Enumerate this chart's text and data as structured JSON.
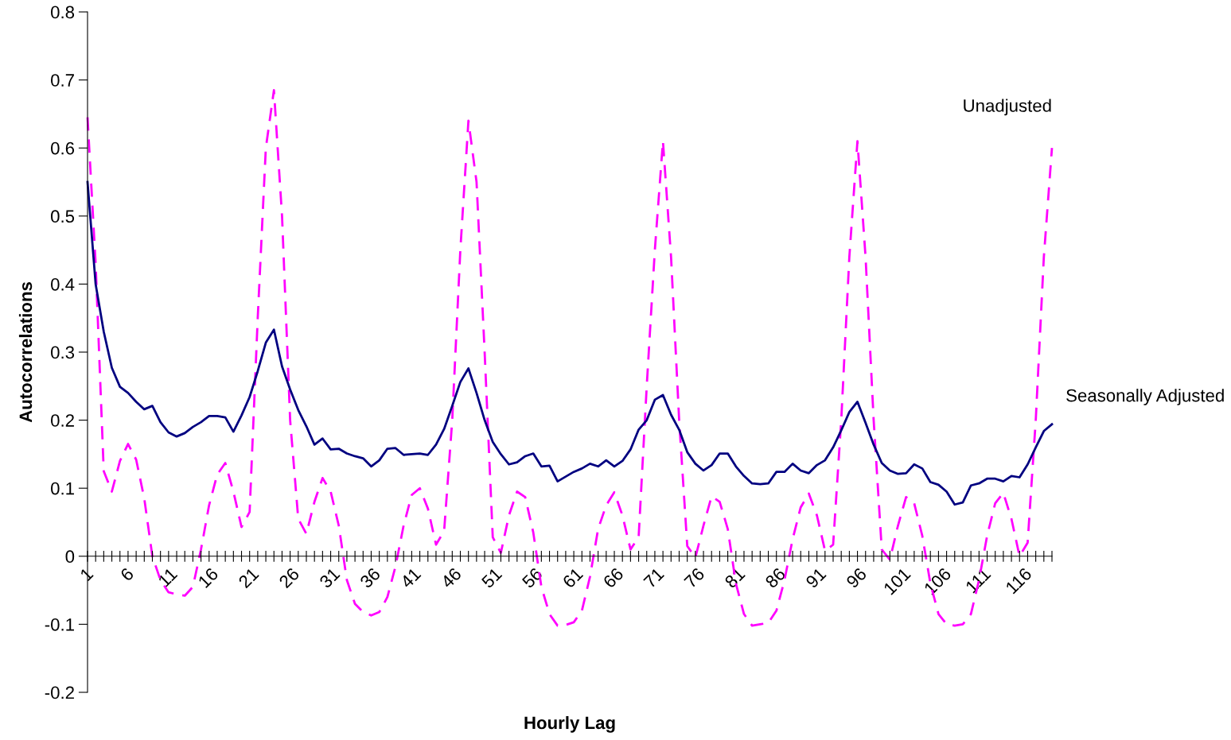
{
  "chart_data": {
    "type": "line",
    "xlabel": "Hourly Lag",
    "ylabel": "Autocorrelations",
    "categories": [
      "1",
      null,
      null,
      null,
      null,
      "6",
      null,
      null,
      null,
      null,
      "11",
      null,
      null,
      null,
      null,
      "16",
      null,
      null,
      null,
      null,
      "21",
      null,
      null,
      null,
      null,
      "26",
      null,
      null,
      null,
      null,
      "31",
      null,
      null,
      null,
      null,
      "36",
      null,
      null,
      null,
      null,
      "41",
      null,
      null,
      null,
      null,
      "46",
      null,
      null,
      null,
      null,
      "51",
      null,
      null,
      null,
      null,
      "56",
      null,
      null,
      null,
      null,
      "61",
      null,
      null,
      null,
      null,
      "66",
      null,
      null,
      null,
      null,
      "71",
      null,
      null,
      null,
      null,
      "76",
      null,
      null,
      null,
      null,
      "81",
      null,
      null,
      null,
      null,
      "86",
      null,
      null,
      null,
      null,
      "91",
      null,
      null,
      null,
      null,
      "96",
      null,
      null,
      null,
      null,
      "101",
      null,
      null,
      null,
      null,
      "106",
      null,
      null,
      null,
      null,
      "111",
      null,
      null,
      null,
      null,
      "116",
      null,
      null,
      null,
      null
    ],
    "ylim": [
      -0.2,
      0.8
    ],
    "yticks": [
      -0.2,
      -0.1,
      0,
      0.1,
      0.2,
      0.3,
      0.4,
      0.5,
      0.6,
      0.7,
      0.8
    ],
    "grid": false,
    "legend": false,
    "marker": "none",
    "series": [
      {
        "name": "Unadjusted",
        "color": "#ff00ff",
        "line_style": "dashed",
        "values": [
          0.645,
          0.43,
          0.125,
          0.095,
          0.14,
          0.165,
          0.142,
          0.085,
          0.0,
          -0.035,
          -0.053,
          -0.056,
          -0.058,
          -0.045,
          0.01,
          0.075,
          0.12,
          0.137,
          0.095,
          0.043,
          0.065,
          0.35,
          0.6,
          0.685,
          0.5,
          0.2,
          0.055,
          0.033,
          0.08,
          0.115,
          0.095,
          0.045,
          -0.035,
          -0.07,
          -0.082,
          -0.087,
          -0.082,
          -0.06,
          -0.015,
          0.045,
          0.09,
          0.1,
          0.07,
          0.017,
          0.037,
          0.2,
          0.45,
          0.64,
          0.55,
          0.3,
          0.028,
          0.005,
          0.06,
          0.095,
          0.087,
          0.035,
          -0.045,
          -0.085,
          -0.102,
          -0.101,
          -0.097,
          -0.08,
          -0.03,
          0.04,
          0.075,
          0.094,
          0.06,
          0.01,
          0.028,
          0.25,
          0.45,
          0.61,
          0.44,
          0.2,
          0.015,
          -0.002,
          0.045,
          0.088,
          0.08,
          0.04,
          -0.04,
          -0.085,
          -0.102,
          -0.1,
          -0.098,
          -0.08,
          -0.035,
          0.025,
          0.072,
          0.092,
          0.06,
          0.008,
          0.017,
          0.2,
          0.44,
          0.61,
          0.44,
          0.2,
          0.01,
          -0.005,
          0.045,
          0.087,
          0.078,
          0.03,
          -0.04,
          -0.085,
          -0.1,
          -0.102,
          -0.1,
          -0.085,
          -0.035,
          0.03,
          0.078,
          0.093,
          0.055,
          0.0,
          0.02,
          0.2,
          0.44,
          0.6
        ]
      },
      {
        "name": "Seasonally Adjusted",
        "color": "#000080",
        "line_style": "solid",
        "values": [
          0.55,
          0.4,
          0.33,
          0.277,
          0.249,
          0.24,
          0.227,
          0.216,
          0.221,
          0.197,
          0.182,
          0.176,
          0.181,
          0.19,
          0.197,
          0.206,
          0.206,
          0.204,
          0.183,
          0.207,
          0.234,
          0.272,
          0.314,
          0.333,
          0.279,
          0.245,
          0.215,
          0.191,
          0.164,
          0.173,
          0.157,
          0.158,
          0.151,
          0.147,
          0.144,
          0.132,
          0.141,
          0.158,
          0.159,
          0.149,
          0.15,
          0.151,
          0.149,
          0.164,
          0.187,
          0.221,
          0.256,
          0.276,
          0.24,
          0.2,
          0.168,
          0.15,
          0.135,
          0.138,
          0.147,
          0.151,
          0.132,
          0.133,
          0.11,
          0.117,
          0.124,
          0.129,
          0.136,
          0.132,
          0.141,
          0.132,
          0.14,
          0.157,
          0.186,
          0.2,
          0.23,
          0.237,
          0.208,
          0.186,
          0.153,
          0.136,
          0.126,
          0.134,
          0.151,
          0.151,
          0.132,
          0.118,
          0.107,
          0.106,
          0.107,
          0.124,
          0.124,
          0.136,
          0.126,
          0.122,
          0.134,
          0.141,
          0.16,
          0.185,
          0.212,
          0.227,
          0.196,
          0.164,
          0.137,
          0.126,
          0.121,
          0.122,
          0.135,
          0.129,
          0.109,
          0.105,
          0.095,
          0.076,
          0.079,
          0.104,
          0.107,
          0.114,
          0.114,
          0.11,
          0.118,
          0.116,
          0.135,
          0.16,
          0.184,
          0.194
        ]
      }
    ]
  }
}
